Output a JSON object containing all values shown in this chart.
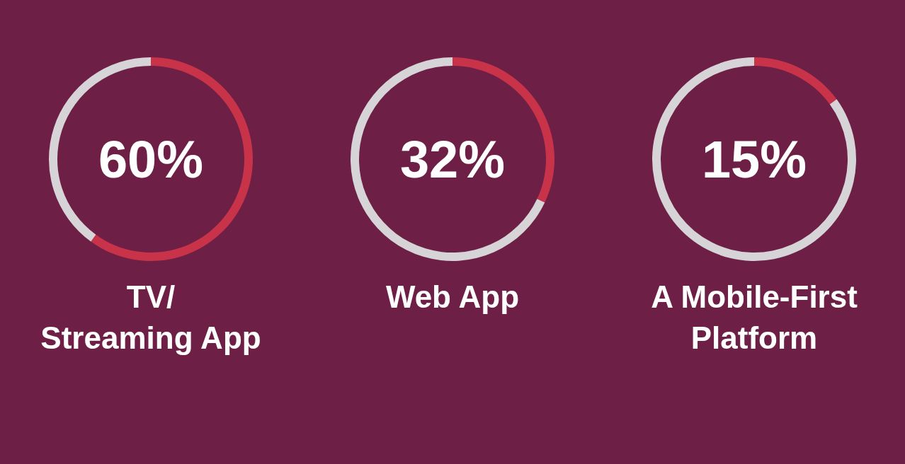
{
  "chart_data": [
    {
      "type": "donut",
      "title": "TV/\nStreaming App",
      "categories": [
        null,
        null
      ],
      "values": [
        60,
        40
      ],
      "colors": [
        "#c8334a",
        "#d6d4d6"
      ],
      "annotations": [
        "60%"
      ]
    },
    {
      "type": "donut",
      "title": "Web App",
      "categories": [
        null,
        null
      ],
      "values": [
        32,
        68
      ],
      "colors": [
        "#c8334a",
        "#d6d4d6"
      ],
      "annotations": [
        "32%"
      ]
    },
    {
      "type": "donut",
      "title": "A Mobile-First\nPlatform",
      "categories": [
        null,
        null
      ],
      "values": [
        15,
        85
      ],
      "colors": [
        "#c8334a",
        "#d6d4d6"
      ],
      "annotations": [
        "15%"
      ]
    }
  ]
}
